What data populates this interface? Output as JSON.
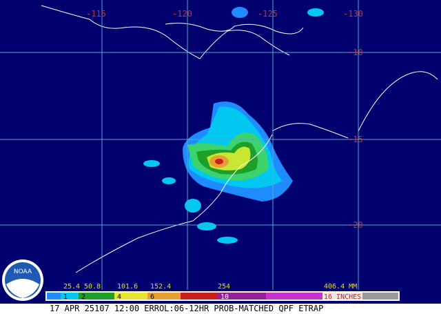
{
  "map": {
    "longitude_labels": [
      "-115",
      "-120",
      "-125",
      "-130"
    ],
    "latitude_labels": [
      "-10",
      "-15",
      "-20"
    ],
    "legend": {
      "mm_labels": [
        "25.4",
        "50.8",
        "101.6",
        "152.4",
        "254",
        "406.4 MM"
      ],
      "inch_labels": [
        "1",
        "2",
        "4",
        "6",
        "10",
        "16 INCHES"
      ]
    },
    "caption": "17 APR 25107 12:00 ERROL:06-12HR PROB-MATCHED QPF ETRAP",
    "logo": "NOAA"
  }
}
